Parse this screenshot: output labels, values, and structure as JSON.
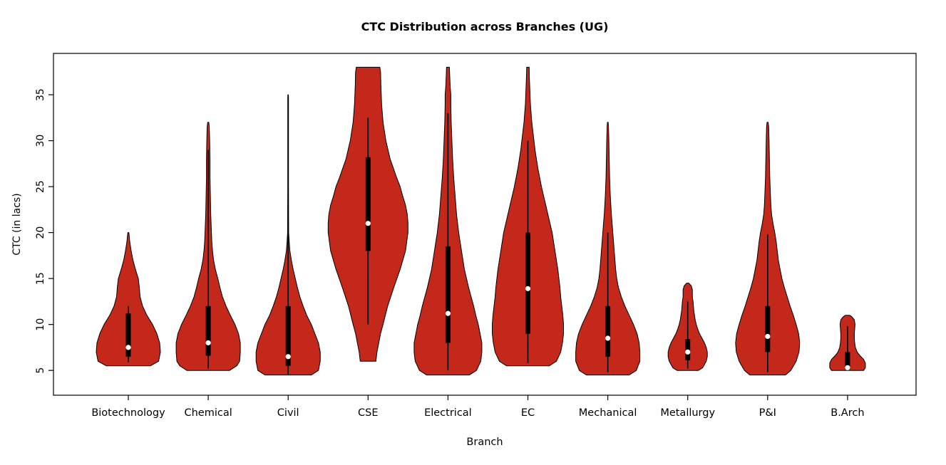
{
  "chart_data": {
    "type": "violin",
    "title": "CTC Distribution across Branches (UG)",
    "xlabel": "Branch",
    "ylabel": "CTC (in lacs)",
    "ylim": [
      2.3,
      39.5
    ],
    "yticks": [
      5,
      10,
      15,
      20,
      25,
      30,
      35
    ],
    "grid": false,
    "fill_color": "#C3281B",
    "outline_color": "#000000",
    "box_color": "#000000",
    "median_dot_color": "#ffffff",
    "categories": [
      "Biotechnology",
      "Chemical",
      "Civil",
      "CSE",
      "Electrical",
      "EC",
      "Mechanical",
      "Metallurgy",
      "P&I",
      "B.Arch"
    ],
    "series": [
      {
        "name": "Biotechnology",
        "min": 5.5,
        "max": 20,
        "q1": 6.5,
        "q3": 11.2,
        "median": 7.5,
        "whisker_low": 5.9,
        "whisker_high": 12.0,
        "profile": [
          [
            5.5,
            0.62
          ],
          [
            6,
            0.85
          ],
          [
            7,
            0.9
          ],
          [
            8,
            0.88
          ],
          [
            9,
            0.8
          ],
          [
            10,
            0.68
          ],
          [
            11,
            0.52
          ],
          [
            12,
            0.4
          ],
          [
            13,
            0.33
          ],
          [
            14,
            0.31
          ],
          [
            15,
            0.28
          ],
          [
            16,
            0.2
          ],
          [
            17,
            0.13
          ],
          [
            18,
            0.08
          ],
          [
            19,
            0.04
          ],
          [
            20,
            0.015
          ]
        ]
      },
      {
        "name": "Chemical",
        "min": 5,
        "max": 32,
        "q1": 6.6,
        "q3": 12.0,
        "median": 8.0,
        "whisker_low": 5.2,
        "whisker_high": 29.0,
        "profile": [
          [
            5,
            0.6
          ],
          [
            5.5,
            0.8
          ],
          [
            6,
            0.88
          ],
          [
            7,
            0.9
          ],
          [
            8,
            0.9
          ],
          [
            9,
            0.85
          ],
          [
            10,
            0.75
          ],
          [
            11,
            0.62
          ],
          [
            12,
            0.5
          ],
          [
            13,
            0.4
          ],
          [
            14,
            0.33
          ],
          [
            15,
            0.27
          ],
          [
            16,
            0.2
          ],
          [
            17,
            0.15
          ],
          [
            18,
            0.12
          ],
          [
            19,
            0.1
          ],
          [
            20,
            0.09
          ],
          [
            22,
            0.07
          ],
          [
            24,
            0.06
          ],
          [
            26,
            0.05
          ],
          [
            28,
            0.05
          ],
          [
            30,
            0.04
          ],
          [
            31.5,
            0.03
          ],
          [
            32,
            0.015
          ]
        ]
      },
      {
        "name": "Civil",
        "min": 4.5,
        "max": 35,
        "q1": 5.5,
        "q3": 12.0,
        "median": 6.5,
        "whisker_low": 4.6,
        "whisker_high": 34.8,
        "profile": [
          [
            4.5,
            0.65
          ],
          [
            5,
            0.85
          ],
          [
            6,
            0.9
          ],
          [
            7,
            0.9
          ],
          [
            8,
            0.85
          ],
          [
            9,
            0.75
          ],
          [
            10,
            0.65
          ],
          [
            11,
            0.52
          ],
          [
            12,
            0.42
          ],
          [
            13,
            0.33
          ],
          [
            14,
            0.26
          ],
          [
            15,
            0.2
          ],
          [
            16,
            0.14
          ],
          [
            17,
            0.09
          ],
          [
            18,
            0.05
          ],
          [
            19,
            0.03
          ],
          [
            20,
            0.015
          ],
          [
            25,
            0.01
          ],
          [
            30,
            0.01
          ],
          [
            34.5,
            0.01
          ],
          [
            35,
            0.008
          ]
        ]
      },
      {
        "name": "CSE",
        "min": 6,
        "max": 38,
        "q1": 18.0,
        "q3": 28.2,
        "median": 21.0,
        "whisker_low": 10.0,
        "whisker_high": 32.5,
        "profile": [
          [
            6,
            0.22
          ],
          [
            7,
            0.25
          ],
          [
            8,
            0.3
          ],
          [
            9,
            0.35
          ],
          [
            10,
            0.42
          ],
          [
            12,
            0.55
          ],
          [
            14,
            0.72
          ],
          [
            16,
            0.9
          ],
          [
            18,
            1.05
          ],
          [
            20,
            1.12
          ],
          [
            21,
            1.12
          ],
          [
            22,
            1.1
          ],
          [
            23,
            1.05
          ],
          [
            24,
            0.97
          ],
          [
            25,
            0.9
          ],
          [
            26,
            0.8
          ],
          [
            28,
            0.62
          ],
          [
            30,
            0.5
          ],
          [
            32,
            0.42
          ],
          [
            34,
            0.38
          ],
          [
            36,
            0.36
          ],
          [
            37.5,
            0.35
          ],
          [
            38,
            0.33
          ]
        ]
      },
      {
        "name": "Electrical",
        "min": 4.5,
        "max": 38,
        "q1": 8.0,
        "q3": 18.5,
        "median": 11.2,
        "whisker_low": 5.0,
        "whisker_high": 33.0,
        "profile": [
          [
            4.5,
            0.6
          ],
          [
            5,
            0.8
          ],
          [
            6,
            0.92
          ],
          [
            7,
            0.95
          ],
          [
            8,
            0.95
          ],
          [
            9,
            0.9
          ],
          [
            10,
            0.85
          ],
          [
            11,
            0.78
          ],
          [
            12,
            0.72
          ],
          [
            13,
            0.65
          ],
          [
            14,
            0.58
          ],
          [
            15,
            0.52
          ],
          [
            16,
            0.46
          ],
          [
            17,
            0.42
          ],
          [
            18,
            0.38
          ],
          [
            19,
            0.34
          ],
          [
            20,
            0.3
          ],
          [
            21,
            0.27
          ],
          [
            22,
            0.24
          ],
          [
            24,
            0.2
          ],
          [
            26,
            0.16
          ],
          [
            28,
            0.13
          ],
          [
            30,
            0.11
          ],
          [
            32,
            0.09
          ],
          [
            34,
            0.08
          ],
          [
            35,
            0.08
          ],
          [
            36,
            0.06
          ],
          [
            37,
            0.05
          ],
          [
            38,
            0.04
          ]
        ]
      },
      {
        "name": "EC",
        "min": 5.5,
        "max": 38,
        "q1": 9.0,
        "q3": 20.0,
        "median": 13.9,
        "whisker_low": 5.8,
        "whisker_high": 30.0,
        "profile": [
          [
            5.5,
            0.6
          ],
          [
            6,
            0.8
          ],
          [
            7,
            0.92
          ],
          [
            8,
            0.97
          ],
          [
            9,
            1.0
          ],
          [
            10,
            1.0
          ],
          [
            11,
            0.98
          ],
          [
            12,
            0.95
          ],
          [
            13,
            0.92
          ],
          [
            14,
            0.9
          ],
          [
            15,
            0.87
          ],
          [
            16,
            0.84
          ],
          [
            17,
            0.8
          ],
          [
            18,
            0.76
          ],
          [
            19,
            0.72
          ],
          [
            20,
            0.68
          ],
          [
            21,
            0.62
          ],
          [
            22,
            0.56
          ],
          [
            23,
            0.5
          ],
          [
            24,
            0.44
          ],
          [
            25,
            0.38
          ],
          [
            26,
            0.33
          ],
          [
            27,
            0.28
          ],
          [
            28,
            0.24
          ],
          [
            29,
            0.2
          ],
          [
            30,
            0.17
          ],
          [
            31,
            0.14
          ],
          [
            32,
            0.11
          ],
          [
            33,
            0.09
          ],
          [
            34,
            0.07
          ],
          [
            35,
            0.06
          ],
          [
            36,
            0.05
          ],
          [
            37,
            0.04
          ],
          [
            38,
            0.035
          ]
        ]
      },
      {
        "name": "Mechanical",
        "min": 4.5,
        "max": 32,
        "q1": 6.5,
        "q3": 12.0,
        "median": 8.5,
        "whisker_low": 4.8,
        "whisker_high": 20.0,
        "profile": [
          [
            4.5,
            0.6
          ],
          [
            5,
            0.8
          ],
          [
            6,
            0.9
          ],
          [
            7,
            0.9
          ],
          [
            8,
            0.88
          ],
          [
            9,
            0.82
          ],
          [
            10,
            0.72
          ],
          [
            11,
            0.6
          ],
          [
            12,
            0.48
          ],
          [
            13,
            0.38
          ],
          [
            14,
            0.3
          ],
          [
            15,
            0.25
          ],
          [
            16,
            0.22
          ],
          [
            17,
            0.2
          ],
          [
            18,
            0.18
          ],
          [
            19,
            0.16
          ],
          [
            20,
            0.14
          ],
          [
            21,
            0.12
          ],
          [
            22,
            0.1
          ],
          [
            24,
            0.07
          ],
          [
            26,
            0.05
          ],
          [
            28,
            0.04
          ],
          [
            30,
            0.03
          ],
          [
            31.5,
            0.02
          ],
          [
            32,
            0.01
          ]
        ]
      },
      {
        "name": "Metallurgy",
        "min": 5,
        "max": 14.5,
        "q1": 6.1,
        "q3": 8.4,
        "median": 7.0,
        "whisker_low": 5.2,
        "whisker_high": 12.5,
        "profile": [
          [
            5,
            0.3
          ],
          [
            5.3,
            0.42
          ],
          [
            6,
            0.52
          ],
          [
            6.5,
            0.55
          ],
          [
            7,
            0.55
          ],
          [
            7.5,
            0.52
          ],
          [
            8,
            0.47
          ],
          [
            8.5,
            0.4
          ],
          [
            9,
            0.33
          ],
          [
            9.5,
            0.28
          ],
          [
            10,
            0.24
          ],
          [
            10.5,
            0.21
          ],
          [
            11,
            0.19
          ],
          [
            11.5,
            0.17
          ],
          [
            12,
            0.16
          ],
          [
            12.5,
            0.15
          ],
          [
            13,
            0.13
          ],
          [
            13.8,
            0.13
          ],
          [
            14.2,
            0.1
          ],
          [
            14.5,
            0.03
          ]
        ]
      },
      {
        "name": "P&I",
        "min": 4.5,
        "max": 32,
        "q1": 7.0,
        "q3": 12.0,
        "median": 8.7,
        "whisker_low": 4.8,
        "whisker_high": 19.8,
        "profile": [
          [
            4.5,
            0.5
          ],
          [
            5,
            0.65
          ],
          [
            6,
            0.8
          ],
          [
            7,
            0.88
          ],
          [
            8,
            0.9
          ],
          [
            9,
            0.87
          ],
          [
            10,
            0.8
          ],
          [
            11,
            0.72
          ],
          [
            12,
            0.63
          ],
          [
            13,
            0.55
          ],
          [
            14,
            0.47
          ],
          [
            15,
            0.4
          ],
          [
            16,
            0.35
          ],
          [
            17,
            0.3
          ],
          [
            18,
            0.27
          ],
          [
            19,
            0.24
          ],
          [
            20,
            0.2
          ],
          [
            21,
            0.15
          ],
          [
            22,
            0.11
          ],
          [
            23,
            0.09
          ],
          [
            24,
            0.08
          ],
          [
            25,
            0.07
          ],
          [
            26,
            0.06
          ],
          [
            28,
            0.05
          ],
          [
            30,
            0.04
          ],
          [
            31.5,
            0.03
          ],
          [
            32,
            0.015
          ]
        ]
      },
      {
        "name": "B.Arch",
        "min": 5,
        "max": 11,
        "q1": 5.1,
        "q3": 7.0,
        "median": 5.3,
        "whisker_low": 5.0,
        "whisker_high": 9.8,
        "profile": [
          [
            5,
            0.45
          ],
          [
            5.3,
            0.5
          ],
          [
            5.8,
            0.5
          ],
          [
            6.2,
            0.45
          ],
          [
            6.6,
            0.35
          ],
          [
            7,
            0.27
          ],
          [
            7.5,
            0.22
          ],
          [
            8,
            0.2
          ],
          [
            8.5,
            0.19
          ],
          [
            9,
            0.19
          ],
          [
            9.5,
            0.2
          ],
          [
            10,
            0.21
          ],
          [
            10.5,
            0.19
          ],
          [
            10.8,
            0.13
          ],
          [
            11,
            0.06
          ]
        ]
      }
    ]
  }
}
